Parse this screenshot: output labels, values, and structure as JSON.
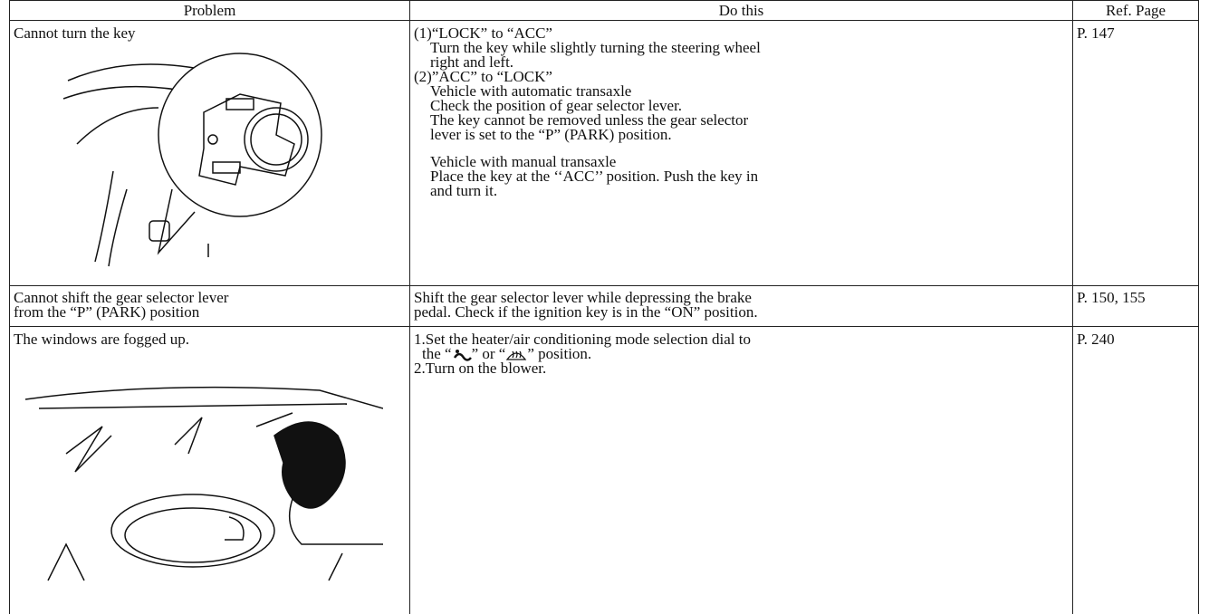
{
  "table": {
    "header": [
      "Problem",
      "Do this",
      "Ref. Page"
    ],
    "rows": [
      {
        "problem": [
          "Cannot turn the key"
        ],
        "do_this": [
          "(1)“LOCK” to “ACC”",
          "Turn the key while slightly turning the steering wheel",
          "right and left.",
          "(2)”ACC” to “LOCK”",
          "Vehicle with automatic transaxle",
          "Check the position of gear selector lever.",
          "The key cannot be removed unless the gear selector",
          "lever is set to the “P” (PARK) position.",
          "Vehicle with manual transaxle",
          "Place the key at the ‘‘ACC’’ position. Push the key in",
          "and turn it."
        ],
        "ref": "P. 147"
      },
      {
        "problem": [
          "Cannot shift the gear selector lever",
          "from the “P” (PARK) position"
        ],
        "do_this": [
          "Shift the gear selector lever while depressing the brake",
          "pedal. Check if the ignition key is in the “ON” position."
        ],
        "ref": "P. 150, 155"
      },
      {
        "problem": [
          "The windows are fogged up."
        ],
        "do_this": [
          "1.Set the heater/air conditioning mode selection dial to",
          [
            "the “",
            "” or “",
            "” position."
          ],
          "2.Turn on the blower."
        ],
        "ref": "P. 240"
      }
    ]
  }
}
